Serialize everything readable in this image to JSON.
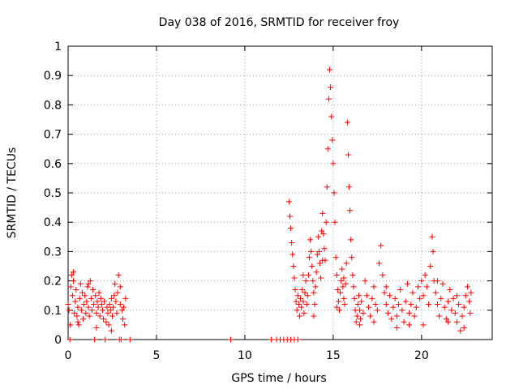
{
  "chart_data": {
    "type": "scatter",
    "title": "Day 038 of 2016, SRMTID for receiver froy",
    "xlabel": "GPS time / hours",
    "ylabel": "SRMTID / TECUs",
    "xlim": [
      0,
      24
    ],
    "ylim": [
      0,
      1
    ],
    "xticks": [
      0,
      5,
      10,
      15,
      20
    ],
    "xtick_labels": [
      "0",
      "5",
      "10",
      "15",
      "20"
    ],
    "yticks": [
      0,
      0.1,
      0.2,
      0.3,
      0.4,
      0.5,
      0.6,
      0.7,
      0.8,
      0.9,
      1
    ],
    "ytick_labels": [
      "0",
      "0.1",
      "0.2",
      "0.3",
      "0.4",
      "0.5",
      "0.6",
      "0.7",
      "0.8",
      "0.9",
      "1"
    ],
    "grid": true,
    "marker": "+",
    "series": [
      {
        "name": "SRMTID",
        "color": "#ff0000",
        "points": [
          [
            0.0,
            0.12
          ],
          [
            0.05,
            0.1
          ],
          [
            0.1,
            0.0
          ],
          [
            0.12,
            0.05
          ],
          [
            0.15,
            0.18
          ],
          [
            0.2,
            0.22
          ],
          [
            0.25,
            0.15
          ],
          [
            0.3,
            0.2
          ],
          [
            0.35,
            0.09
          ],
          [
            0.4,
            0.13
          ],
          [
            0.45,
            0.17
          ],
          [
            0.5,
            0.08
          ],
          [
            0.55,
            0.11
          ],
          [
            0.6,
            0.05
          ],
          [
            0.65,
            0.14
          ],
          [
            0.7,
            0.19
          ],
          [
            0.75,
            0.1
          ],
          [
            0.8,
            0.16
          ],
          [
            0.85,
            0.07
          ],
          [
            0.9,
            0.12
          ],
          [
            0.95,
            0.15
          ],
          [
            1.0,
            0.09
          ],
          [
            1.05,
            0.13
          ],
          [
            1.1,
            0.18
          ],
          [
            1.15,
            0.11
          ],
          [
            1.2,
            0.08
          ],
          [
            1.25,
            0.2
          ],
          [
            1.3,
            0.14
          ],
          [
            1.35,
            0.1
          ],
          [
            1.4,
            0.17
          ],
          [
            1.45,
            0.12
          ],
          [
            1.5,
            0.0
          ],
          [
            1.55,
            0.15
          ],
          [
            1.6,
            0.09
          ],
          [
            1.65,
            0.13
          ],
          [
            1.7,
            0.11
          ],
          [
            1.75,
            0.16
          ],
          [
            1.8,
            0.08
          ],
          [
            1.85,
            0.14
          ],
          [
            1.9,
            0.12
          ],
          [
            1.95,
            0.1
          ],
          [
            2.0,
            0.07
          ],
          [
            2.05,
            0.13
          ],
          [
            2.1,
            0.0
          ],
          [
            2.15,
            0.06
          ],
          [
            2.2,
            0.11
          ],
          [
            2.25,
            0.09
          ],
          [
            2.3,
            0.05
          ],
          [
            2.35,
            0.12
          ],
          [
            2.4,
            0.1
          ],
          [
            2.45,
            0.14
          ],
          [
            2.5,
            0.08
          ],
          [
            2.55,
            0.11
          ],
          [
            2.6,
            0.15
          ],
          [
            2.65,
            0.19
          ],
          [
            2.7,
            0.13
          ],
          [
            2.75,
            0.09
          ],
          [
            2.8,
            0.16
          ],
          [
            2.85,
            0.22
          ],
          [
            2.9,
            0.0
          ],
          [
            2.95,
            0.12
          ],
          [
            3.0,
            0.0
          ],
          [
            3.05,
            0.1
          ],
          [
            3.1,
            0.07
          ],
          [
            3.15,
            0.11
          ],
          [
            3.2,
            0.05
          ],
          [
            3.25,
            0.14
          ],
          [
            3.5,
            0.0
          ],
          [
            0.3,
            0.23
          ],
          [
            0.55,
            0.06
          ],
          [
            1.15,
            0.19
          ],
          [
            1.6,
            0.04
          ],
          [
            2.45,
            0.03
          ],
          [
            2.95,
            0.18
          ],
          [
            9.2,
            0.0
          ],
          [
            11.5,
            0.0
          ],
          [
            11.8,
            0.0
          ],
          [
            12.0,
            0.0
          ],
          [
            12.2,
            0.0
          ],
          [
            12.4,
            0.0
          ],
          [
            12.6,
            0.0
          ],
          [
            12.8,
            0.0
          ],
          [
            13.0,
            0.0
          ],
          [
            12.5,
            0.47
          ],
          [
            12.55,
            0.42
          ],
          [
            12.6,
            0.38
          ],
          [
            12.65,
            0.33
          ],
          [
            12.7,
            0.29
          ],
          [
            12.75,
            0.25
          ],
          [
            12.8,
            0.21
          ],
          [
            12.85,
            0.17
          ],
          [
            12.9,
            0.13
          ],
          [
            12.95,
            0.1
          ],
          [
            13.0,
            0.15
          ],
          [
            13.05,
            0.12
          ],
          [
            13.1,
            0.08
          ],
          [
            13.15,
            0.14
          ],
          [
            13.2,
            0.11
          ],
          [
            13.25,
            0.17
          ],
          [
            13.3,
            0.13
          ],
          [
            13.35,
            0.09
          ],
          [
            13.4,
            0.16
          ],
          [
            13.45,
            0.2
          ],
          [
            13.5,
            0.12
          ],
          [
            13.55,
            0.15
          ],
          [
            13.6,
            0.22
          ],
          [
            13.65,
            0.28
          ],
          [
            13.7,
            0.34
          ],
          [
            13.75,
            0.3
          ],
          [
            13.8,
            0.25
          ],
          [
            13.85,
            0.2
          ],
          [
            13.9,
            0.16
          ],
          [
            13.95,
            0.12
          ],
          [
            14.0,
            0.18
          ],
          [
            14.05,
            0.23
          ],
          [
            14.1,
            0.29
          ],
          [
            14.15,
            0.35
          ],
          [
            14.2,
            0.3
          ],
          [
            14.25,
            0.26
          ],
          [
            14.3,
            0.21
          ],
          [
            14.35,
            0.37
          ],
          [
            14.4,
            0.43
          ],
          [
            14.45,
            0.36
          ],
          [
            14.5,
            0.31
          ],
          [
            14.55,
            0.27
          ],
          [
            14.6,
            0.4
          ],
          [
            14.65,
            0.52
          ],
          [
            14.7,
            0.65
          ],
          [
            14.75,
            0.82
          ],
          [
            14.8,
            0.92
          ],
          [
            14.85,
            0.86
          ],
          [
            14.9,
            0.76
          ],
          [
            14.95,
            0.68
          ],
          [
            15.0,
            0.6
          ],
          [
            15.05,
            0.5
          ],
          [
            15.1,
            0.4
          ],
          [
            15.15,
            0.28
          ],
          [
            15.2,
            0.22
          ],
          [
            15.25,
            0.17
          ],
          [
            15.3,
            0.13
          ],
          [
            15.35,
            0.1
          ],
          [
            15.4,
            0.16
          ],
          [
            15.45,
            0.2
          ],
          [
            15.5,
            0.24
          ],
          [
            15.55,
            0.18
          ],
          [
            15.6,
            0.14
          ],
          [
            15.65,
            0.12
          ],
          [
            15.7,
            0.19
          ],
          [
            15.75,
            0.26
          ],
          [
            15.8,
            0.74
          ],
          [
            15.85,
            0.63
          ],
          [
            15.9,
            0.52
          ],
          [
            15.95,
            0.44
          ],
          [
            16.0,
            0.34
          ],
          [
            16.05,
            0.28
          ],
          [
            16.1,
            0.22
          ],
          [
            16.15,
            0.18
          ],
          [
            16.2,
            0.14
          ],
          [
            16.25,
            0.1
          ],
          [
            16.3,
            0.06
          ],
          [
            16.35,
            0.08
          ],
          [
            16.4,
            0.12
          ],
          [
            16.45,
            0.15
          ],
          [
            16.5,
            0.1
          ],
          [
            16.55,
            0.07
          ],
          [
            16.6,
            0.13
          ],
          [
            16.7,
            0.09
          ],
          [
            16.8,
            0.2
          ],
          [
            16.9,
            0.15
          ],
          [
            17.0,
            0.11
          ],
          [
            17.1,
            0.08
          ],
          [
            17.2,
            0.14
          ],
          [
            17.3,
            0.18
          ],
          [
            17.4,
            0.12
          ],
          [
            17.5,
            0.1
          ],
          [
            17.6,
            0.26
          ],
          [
            17.7,
            0.32
          ],
          [
            17.8,
            0.22
          ],
          [
            17.9,
            0.16
          ],
          [
            18.0,
            0.12
          ],
          [
            18.1,
            0.09
          ],
          [
            18.2,
            0.15
          ],
          [
            18.3,
            0.07
          ],
          [
            18.4,
            0.11
          ],
          [
            18.5,
            0.14
          ],
          [
            18.6,
            0.08
          ],
          [
            18.7,
            0.12
          ],
          [
            18.8,
            0.17
          ],
          [
            18.9,
            0.1
          ],
          [
            19.0,
            0.06
          ],
          [
            19.1,
            0.13
          ],
          [
            19.2,
            0.19
          ],
          [
            19.3,
            0.09
          ],
          [
            19.4,
            0.12
          ],
          [
            19.5,
            0.16
          ],
          [
            19.6,
            0.08
          ],
          [
            19.7,
            0.11
          ],
          [
            19.8,
            0.18
          ],
          [
            19.9,
            0.14
          ],
          [
            20.0,
            0.2
          ],
          [
            20.1,
            0.15
          ],
          [
            20.2,
            0.22
          ],
          [
            20.3,
            0.18
          ],
          [
            20.4,
            0.12
          ],
          [
            20.5,
            0.25
          ],
          [
            20.6,
            0.35
          ],
          [
            20.65,
            0.3
          ],
          [
            20.7,
            0.2
          ],
          [
            20.8,
            0.16
          ],
          [
            20.9,
            0.12
          ],
          [
            21.0,
            0.08
          ],
          [
            21.1,
            0.14
          ],
          [
            21.2,
            0.19
          ],
          [
            21.3,
            0.11
          ],
          [
            21.4,
            0.07
          ],
          [
            21.5,
            0.13
          ],
          [
            21.6,
            0.17
          ],
          [
            21.7,
            0.1
          ],
          [
            21.8,
            0.14
          ],
          [
            21.9,
            0.09
          ],
          [
            22.0,
            0.06
          ],
          [
            22.1,
            0.12
          ],
          [
            22.2,
            0.03
          ],
          [
            22.3,
            0.08
          ],
          [
            22.4,
            0.11
          ],
          [
            22.5,
            0.15
          ],
          [
            22.6,
            0.18
          ],
          [
            22.7,
            0.13
          ],
          [
            22.75,
            0.09
          ],
          [
            22.8,
            0.16
          ],
          [
            13.3,
            0.22
          ],
          [
            13.9,
            0.08
          ],
          [
            14.4,
            0.27
          ],
          [
            15.2,
            0.11
          ],
          [
            15.6,
            0.21
          ],
          [
            16.5,
            0.05
          ],
          [
            17.3,
            0.06
          ],
          [
            18.0,
            0.18
          ],
          [
            18.6,
            0.04
          ],
          [
            19.3,
            0.05
          ],
          [
            20.1,
            0.05
          ],
          [
            20.9,
            0.2
          ],
          [
            21.5,
            0.06
          ],
          [
            22.0,
            0.15
          ],
          [
            22.4,
            0.04
          ]
        ]
      }
    ]
  }
}
